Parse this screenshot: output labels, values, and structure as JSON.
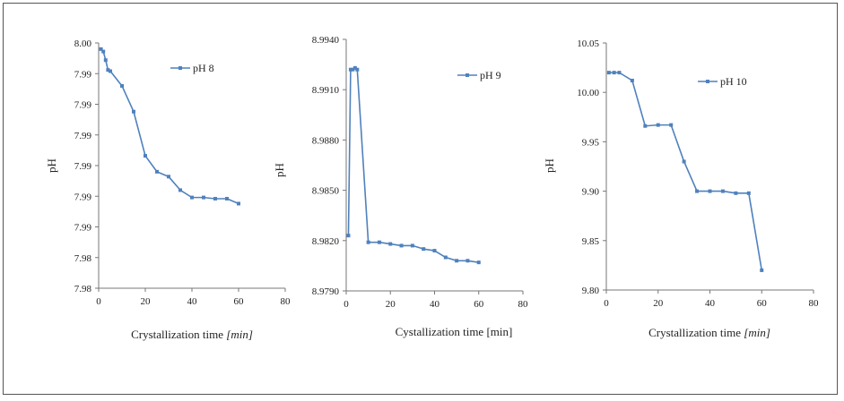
{
  "chart_data": [
    {
      "type": "line",
      "ylabel": "pH",
      "xlabel_text": "Crystallization time ",
      "xlabel_unit": "[min]",
      "xlim": [
        0,
        80
      ],
      "ylim": [
        7.98,
        8.0
      ],
      "x_ticks": [
        "0",
        "20",
        "40",
        "60",
        "80"
      ],
      "y_ticks": [
        "8.00",
        "7.99",
        "7.99",
        "7.99",
        "7.99",
        "7.99",
        "7.99",
        "7.98",
        "7.98"
      ],
      "series": [
        {
          "name": "pH 8",
          "color": "#4f81bd",
          "x": [
            1,
            2,
            3,
            4,
            5,
            10,
            15,
            20,
            25,
            30,
            35,
            40,
            45,
            50,
            55,
            60
          ],
          "y": [
            7.9995,
            7.9993,
            7.9986,
            7.9978,
            7.9977,
            7.9965,
            7.9944,
            7.9908,
            7.9895,
            7.9891,
            7.988,
            7.9874,
            7.9874,
            7.9873,
            7.9873,
            7.9869
          ]
        }
      ]
    },
    {
      "type": "line",
      "ylabel": "pH",
      "xlabel_text": "Cystallization time  [min]",
      "xlim": [
        0,
        80
      ],
      "ylim": [
        8.979,
        8.994
      ],
      "x_ticks": [
        "0",
        "20",
        "40",
        "60",
        "80"
      ],
      "y_ticks": [
        "8.9940",
        "8.9910",
        "8.9880",
        "8.9850",
        "8.9820",
        "8.9790"
      ],
      "series": [
        {
          "name": "pH 9",
          "color": "#4f81bd",
          "x": [
            1,
            2,
            3,
            4,
            5,
            10,
            15,
            20,
            25,
            30,
            35,
            40,
            45,
            50,
            55,
            60
          ],
          "y": [
            8.9823,
            8.9922,
            8.9922,
            8.9923,
            8.9922,
            8.9819,
            8.9819,
            8.9818,
            8.9817,
            8.9817,
            8.9815,
            8.9814,
            8.981,
            8.9808,
            8.9808,
            8.9807
          ]
        }
      ]
    },
    {
      "type": "line",
      "ylabel": "pH",
      "xlabel_text": "Crystallization time ",
      "xlabel_unit": "[min]",
      "xlim": [
        0,
        80
      ],
      "ylim": [
        9.8,
        10.05
      ],
      "x_ticks": [
        "0",
        "20",
        "40",
        "60",
        "80"
      ],
      "y_ticks": [
        "10.05",
        "10.00",
        "9.95",
        "9.90",
        "9.85",
        "9.80"
      ],
      "series": [
        {
          "name": "pH 10",
          "color": "#4f81bd",
          "x": [
            1,
            3,
            5,
            10,
            15,
            20,
            25,
            30,
            35,
            40,
            45,
            50,
            55,
            60
          ],
          "y": [
            10.02,
            10.02,
            10.02,
            10.012,
            9.966,
            9.967,
            9.967,
            9.93,
            9.9,
            9.9,
            9.9,
            9.898,
            9.898,
            9.82
          ]
        }
      ]
    }
  ]
}
